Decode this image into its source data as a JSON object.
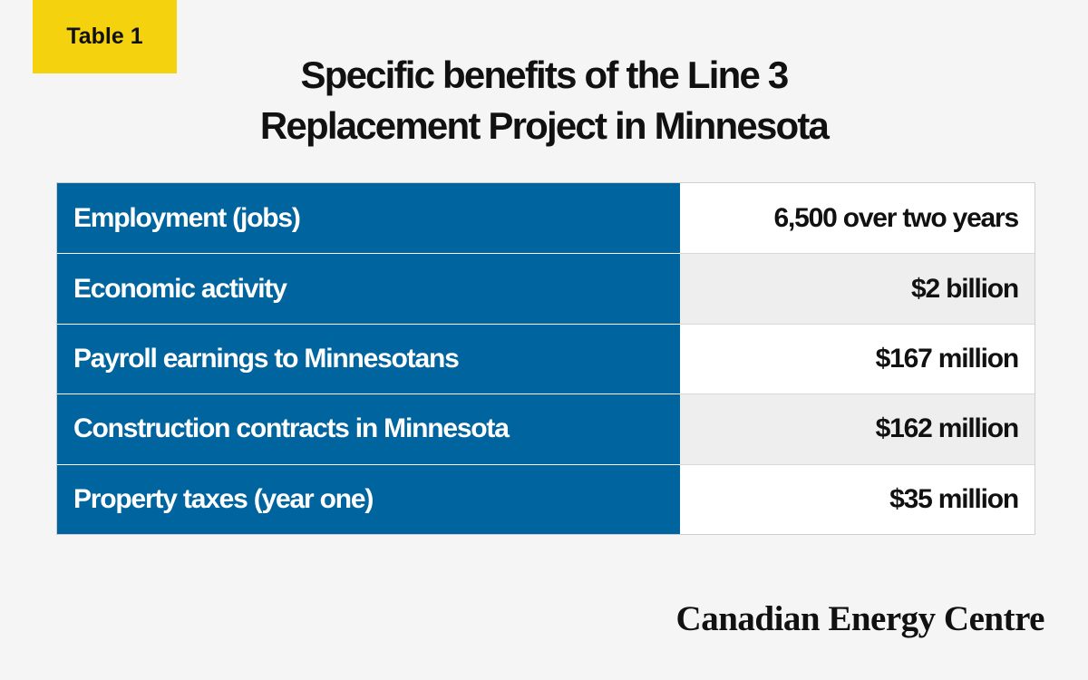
{
  "tag": "Table 1",
  "chart_data": {
    "type": "table",
    "title": [
      "Specific benefits of the Line 3",
      "Replacement Project in Minnesota"
    ],
    "rows": [
      {
        "label": "Employment (jobs)",
        "value": "6,500 over two years"
      },
      {
        "label": "Economic activity",
        "value": "$2 billion"
      },
      {
        "label": "Payroll earnings to Minnesotans",
        "value": "$167 million"
      },
      {
        "label": "Construction contracts in Minnesota",
        "value": "$162 million"
      },
      {
        "label": "Property taxes (year one)",
        "value": "$35 million"
      }
    ]
  },
  "brand": "Canadian Energy Centre",
  "colors": {
    "accent_yellow": "#f5d20e",
    "header_blue": "#00649e",
    "stripe_gray": "#eeeeee"
  }
}
